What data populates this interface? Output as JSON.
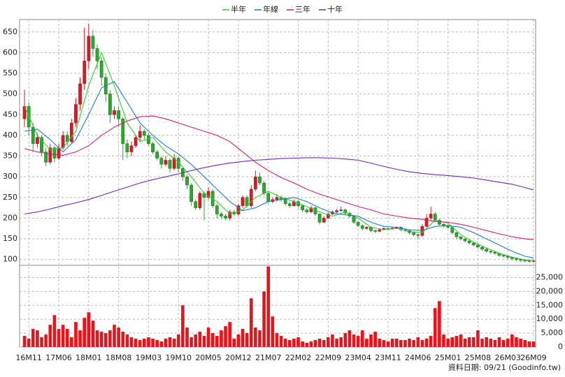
{
  "chart_data": {
    "type": "candlestick",
    "categories": [
      null,
      "16M11",
      null,
      null,
      null,
      null,
      null,
      null,
      "17M06",
      null,
      null,
      null,
      null,
      null,
      null,
      "18M01",
      null,
      null,
      null,
      null,
      null,
      null,
      "18M08",
      null,
      null,
      null,
      null,
      null,
      null,
      "19M03",
      null,
      null,
      null,
      null,
      null,
      null,
      "19M10",
      null,
      null,
      null,
      null,
      null,
      null,
      "20M05",
      null,
      null,
      null,
      null,
      null,
      null,
      "20M12",
      null,
      null,
      null,
      null,
      null,
      null,
      "21M07",
      null,
      null,
      null,
      null,
      null,
      null,
      "22M02",
      null,
      null,
      null,
      null,
      null,
      null,
      "22M09",
      null,
      null,
      null,
      null,
      null,
      null,
      "23M04",
      null,
      null,
      null,
      null,
      null,
      null,
      "23M11",
      null,
      null,
      null,
      null,
      null,
      null,
      "24M06",
      null,
      null,
      null,
      null,
      null,
      null,
      "25M01",
      null,
      null,
      null,
      null,
      null,
      null,
      "25M08",
      null,
      null,
      null,
      null,
      null,
      null,
      "26M03",
      null,
      null,
      null,
      null,
      null,
      "26M09"
    ],
    "open": [
      440,
      470,
      420,
      380,
      395,
      360,
      335,
      370,
      345,
      370,
      400,
      385,
      430,
      475,
      525,
      580,
      640,
      610,
      580,
      540,
      500,
      450,
      460,
      440,
      380,
      360,
      375,
      395,
      410,
      400,
      380,
      360,
      345,
      330,
      340,
      320,
      345,
      320,
      300,
      280,
      240,
      225,
      260,
      250,
      265,
      230,
      210,
      205,
      200,
      215,
      210,
      230,
      250,
      230,
      270,
      300,
      285,
      260,
      240,
      245,
      250,
      245,
      235,
      230,
      240,
      230,
      220,
      215,
      225,
      210,
      190,
      200,
      210,
      215,
      218,
      220,
      212,
      205,
      190,
      182,
      175,
      178,
      170,
      168,
      172,
      175,
      174,
      176,
      178,
      172,
      170,
      165,
      160,
      158,
      180,
      200,
      210,
      195,
      185,
      182,
      178,
      165,
      155,
      150,
      145,
      140,
      135,
      130,
      125,
      120,
      118,
      115,
      110,
      108,
      105,
      102,
      100,
      98,
      97,
      96
    ],
    "close": [
      470,
      420,
      380,
      395,
      360,
      335,
      370,
      345,
      370,
      400,
      385,
      430,
      475,
      525,
      580,
      640,
      610,
      580,
      540,
      500,
      450,
      460,
      440,
      380,
      360,
      375,
      395,
      410,
      400,
      380,
      360,
      345,
      330,
      340,
      320,
      345,
      320,
      300,
      280,
      240,
      225,
      260,
      250,
      265,
      230,
      210,
      205,
      200,
      215,
      210,
      230,
      250,
      230,
      270,
      300,
      285,
      260,
      240,
      245,
      250,
      245,
      235,
      230,
      240,
      230,
      220,
      215,
      225,
      210,
      190,
      200,
      210,
      215,
      218,
      220,
      212,
      205,
      190,
      182,
      175,
      178,
      170,
      168,
      172,
      175,
      174,
      176,
      178,
      172,
      170,
      165,
      160,
      158,
      180,
      200,
      210,
      195,
      185,
      182,
      178,
      165,
      155,
      150,
      145,
      140,
      135,
      130,
      125,
      120,
      118,
      115,
      110,
      108,
      105,
      102,
      100,
      98,
      97,
      96,
      97
    ],
    "high": [
      510,
      480,
      430,
      405,
      400,
      370,
      380,
      375,
      380,
      410,
      410,
      440,
      490,
      540,
      660,
      670,
      655,
      620,
      590,
      550,
      510,
      470,
      470,
      445,
      390,
      385,
      400,
      425,
      415,
      405,
      385,
      365,
      350,
      350,
      345,
      355,
      350,
      325,
      305,
      285,
      245,
      265,
      265,
      275,
      270,
      235,
      215,
      210,
      220,
      220,
      235,
      255,
      255,
      280,
      315,
      310,
      290,
      265,
      250,
      258,
      255,
      250,
      240,
      245,
      243,
      233,
      224,
      230,
      228,
      212,
      205,
      214,
      218,
      222,
      228,
      223,
      215,
      207,
      193,
      185,
      180,
      180,
      172,
      175,
      178,
      177,
      178,
      180,
      180,
      174,
      172,
      167,
      163,
      185,
      210,
      228,
      215,
      198,
      188,
      185,
      180,
      167,
      157,
      152,
      147,
      142,
      137,
      132,
      127,
      122,
      120,
      117,
      112,
      110,
      107,
      104,
      102,
      100,
      99,
      99
    ],
    "low": [
      420,
      400,
      360,
      370,
      350,
      325,
      330,
      335,
      340,
      365,
      375,
      380,
      420,
      460,
      510,
      560,
      590,
      560,
      520,
      480,
      430,
      440,
      420,
      340,
      345,
      350,
      370,
      385,
      390,
      375,
      355,
      340,
      320,
      325,
      310,
      315,
      310,
      290,
      270,
      230,
      220,
      220,
      195,
      245,
      225,
      200,
      198,
      195,
      195,
      205,
      205,
      225,
      225,
      225,
      265,
      280,
      255,
      235,
      236,
      240,
      240,
      230,
      225,
      228,
      226,
      215,
      210,
      212,
      205,
      185,
      188,
      198,
      208,
      212,
      215,
      208,
      200,
      186,
      178,
      170,
      172,
      166,
      164,
      166,
      170,
      171,
      172,
      174,
      168,
      166,
      160,
      155,
      150,
      155,
      178,
      195,
      190,
      182,
      178,
      175,
      160,
      150,
      146,
      141,
      136,
      131,
      126,
      121,
      116,
      114,
      111,
      106,
      104,
      101,
      98,
      96,
      94,
      93,
      92,
      93
    ],
    "volume": [
      4000,
      3000,
      6500,
      6000,
      3500,
      4500,
      8000,
      11500,
      6500,
      8000,
      6500,
      3500,
      9000,
      6000,
      10500,
      12500,
      9500,
      6000,
      5500,
      5000,
      6000,
      8000,
      7000,
      5500,
      4500,
      3500,
      3000,
      2500,
      3000,
      3500,
      3000,
      2500,
      2000,
      3000,
      3500,
      3000,
      4500,
      15000,
      7000,
      3500,
      4500,
      5500,
      4000,
      7000,
      5000,
      4000,
      6000,
      7500,
      9000,
      3000,
      4500,
      6500,
      5000,
      17500,
      7000,
      6000,
      20000,
      29000,
      11000,
      5000,
      4000,
      3000,
      2500,
      3000,
      3500,
      2000,
      1500,
      2000,
      2500,
      3000,
      2500,
      3500,
      4500,
      3000,
      3500,
      5000,
      6000,
      4500,
      4000,
      6000,
      3000,
      4500,
      5500,
      3000,
      2500,
      2000,
      3000,
      3000,
      2500,
      2500,
      3000,
      2500,
      3500,
      2500,
      3000,
      4000,
      14000,
      16500,
      4500,
      3000,
      3500,
      4000,
      4500,
      3000,
      3500,
      3500,
      6000,
      3000,
      3500,
      3000,
      2500,
      3500,
      2500,
      3000,
      4500,
      3500,
      3000,
      2500,
      2000,
      2000
    ],
    "color_up": "#e8141c",
    "color_down": "#22b022",
    "volume_color": "#e8141c",
    "ylim": [
      86,
      680
    ],
    "yticks": [
      100,
      150,
      200,
      250,
      300,
      350,
      400,
      450,
      500,
      550,
      600,
      650
    ],
    "y2lim": [
      0,
      29400
    ],
    "y2ticks": [
      0,
      {
        "value": 5000,
        "label": "5,000"
      },
      {
        "value": 10000,
        "label": "10,000"
      },
      {
        "value": 15000,
        "label": "15,000"
      },
      {
        "value": 20000,
        "label": "20,000"
      },
      {
        "value": 25000,
        "label": "25,000"
      }
    ],
    "grid": true,
    "lines_x": [
      0,
      3,
      6,
      9,
      12,
      15,
      18,
      21,
      24,
      27,
      30,
      33,
      36,
      39,
      42,
      45,
      48,
      51,
      54,
      57,
      60,
      63,
      66,
      69,
      72,
      75,
      78,
      81,
      84,
      87,
      90,
      93,
      96,
      99,
      102,
      105,
      108,
      111,
      114,
      117,
      119
    ],
    "lines": [
      {
        "name": "半年",
        "color": "#33cc33",
        "values": [
          470,
          400,
          365,
          370,
          410,
          520,
          600,
          520,
          430,
          385,
          395,
          360,
          335,
          300,
          260,
          240,
          210,
          220,
          250,
          265,
          250,
          240,
          228,
          215,
          205,
          215,
          200,
          178,
          172,
          175,
          168,
          165,
          195,
          188,
          160,
          142,
          128,
          115,
          106,
          99,
          97
        ]
      },
      {
        "name": "年線",
        "color": "#1f78d0",
        "values": [
          410,
          415,
          390,
          360,
          390,
          450,
          515,
          530,
          480,
          430,
          400,
          375,
          355,
          330,
          300,
          270,
          240,
          218,
          225,
          240,
          245,
          250,
          240,
          225,
          212,
          208,
          205,
          190,
          180,
          178,
          172,
          170,
          180,
          182,
          178,
          165,
          150,
          135,
          120,
          108,
          104
        ]
      },
      {
        "name": "三年",
        "color": "#d81b6a",
        "values": [
          368,
          360,
          355,
          352,
          360,
          375,
          400,
          420,
          435,
          445,
          447,
          440,
          430,
          420,
          410,
          400,
          385,
          360,
          335,
          315,
          298,
          285,
          270,
          258,
          248,
          238,
          228,
          220,
          210,
          205,
          200,
          197,
          192,
          190,
          185,
          178,
          170,
          162,
          155,
          150,
          148
        ]
      },
      {
        "name": "十年",
        "color": "#7a22b8",
        "values": [
          210,
          215,
          222,
          230,
          237,
          245,
          255,
          265,
          275,
          285,
          293,
          300,
          307,
          315,
          322,
          328,
          333,
          337,
          340,
          342,
          344,
          345,
          346,
          346,
          345,
          343,
          340,
          333,
          325,
          318,
          312,
          308,
          305,
          303,
          300,
          297,
          292,
          287,
          282,
          274,
          268
        ]
      }
    ],
    "source": "資料日期: 09/21 (Goodinfo.tw)"
  }
}
